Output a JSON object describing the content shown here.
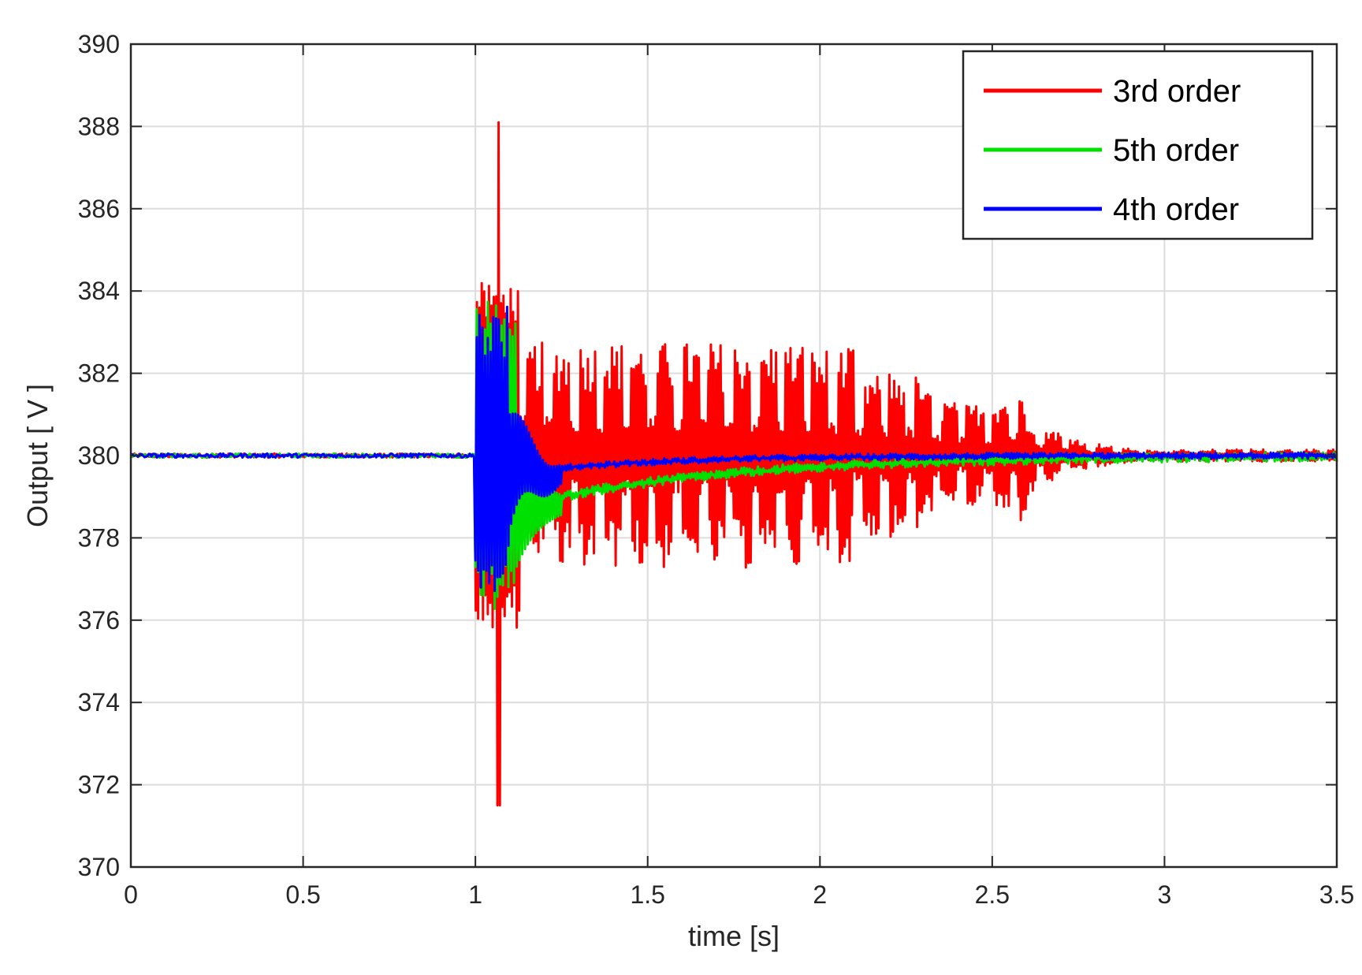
{
  "chart_data": {
    "type": "line",
    "title": "",
    "xlabel": "time [s]",
    "ylabel": "Output [ V ]",
    "xlim": [
      0,
      3.5
    ],
    "ylim": [
      370,
      390
    ],
    "xticks": [
      0,
      0.5,
      1,
      1.5,
      2,
      2.5,
      3,
      3.5
    ],
    "xtick_labels": [
      "0",
      "0.5",
      "1",
      "1.5",
      "2",
      "2.5",
      "3",
      "3.5"
    ],
    "yticks": [
      370,
      372,
      374,
      376,
      378,
      380,
      382,
      384,
      386,
      388,
      390
    ],
    "ytick_labels": [
      "370",
      "372",
      "374",
      "376",
      "378",
      "380",
      "382",
      "384",
      "386",
      "388",
      "390"
    ],
    "grid": true,
    "legend_position": "top-right",
    "series": [
      {
        "name": "3rd order",
        "color": "#ff0000",
        "steady_value": 380,
        "disturbance_time": 1.0,
        "peak_max": 388.1,
        "peak_min": 371.5,
        "oscillation_upper": 382.8,
        "oscillation_lower": 377.3,
        "settling_time": 3.0
      },
      {
        "name": "5th order",
        "color": "#00e000",
        "steady_value": 380,
        "disturbance_time": 1.0,
        "peak_max": 384.2,
        "peak_min": 376.1,
        "post_disturbance_dip": 379.0,
        "settling_time": 3.0
      },
      {
        "name": "4th order",
        "color": "#0000ff",
        "steady_value": 380,
        "disturbance_time": 1.0,
        "peak_max": 384.0,
        "peak_min": 376.5,
        "post_disturbance_dip": 378.3,
        "settling_time": 1.25
      }
    ]
  }
}
